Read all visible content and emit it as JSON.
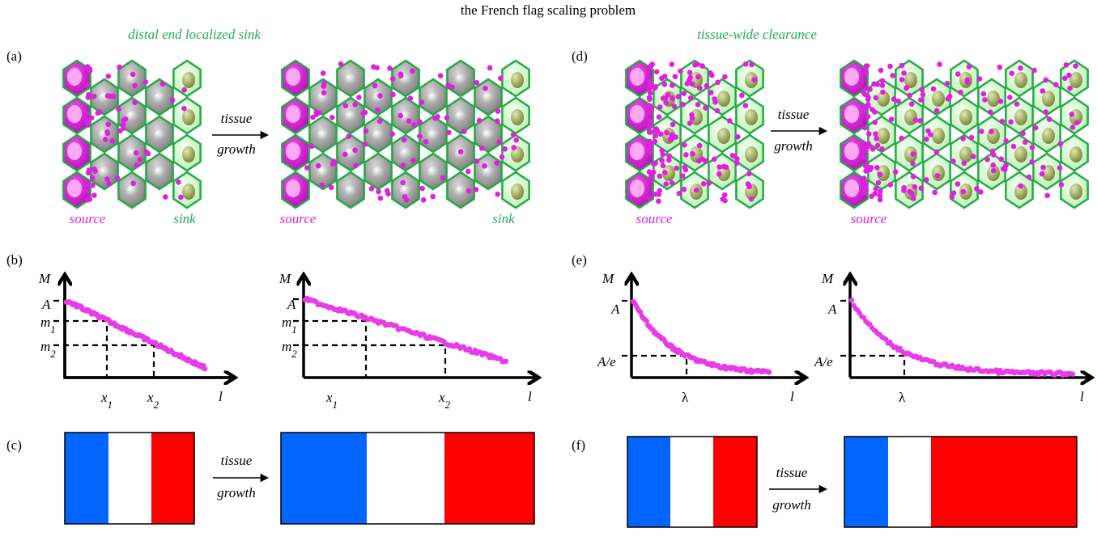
{
  "title": "the French flag scaling problem",
  "panel_a": {
    "label": "(a)",
    "heading": "distal end localized sink",
    "arrow": {
      "line1": "tissue",
      "line2": "growth"
    },
    "before": {
      "source": "source",
      "sink": "sink"
    },
    "after": {
      "source": "source",
      "sink": "sink"
    }
  },
  "panel_b": {
    "label": "(b)",
    "before": {
      "y_axis": "M",
      "x_axis": "l",
      "A": "A",
      "m1": {
        "base": "m",
        "sub": "1"
      },
      "m2": {
        "base": "m",
        "sub": "2"
      },
      "x1": {
        "base": "x",
        "sub": "1"
      },
      "x2": {
        "base": "x",
        "sub": "2"
      }
    },
    "after": {
      "y_axis": "M",
      "x_axis": "l",
      "A": "A",
      "m1": {
        "base": "m",
        "sub": "1"
      },
      "m2": {
        "base": "m",
        "sub": "2"
      },
      "x1": {
        "base": "x",
        "sub": "1"
      },
      "x2": {
        "base": "x",
        "sub": "2"
      }
    }
  },
  "panel_c": {
    "label": "(c)",
    "arrow": {
      "line1": "tissue",
      "line2": "growth"
    }
  },
  "panel_d": {
    "label": "(d)",
    "heading": "tissue-wide clearance",
    "arrow": {
      "line1": "tissue",
      "line2": "growth"
    },
    "before": {
      "source": "source"
    },
    "after": {
      "source": "source"
    }
  },
  "panel_e": {
    "label": "(e)",
    "before": {
      "y_axis": "M",
      "x_axis": "l",
      "A": "A",
      "A_over_e": "A/e",
      "lambda": "λ"
    },
    "after": {
      "y_axis": "M",
      "x_axis": "l",
      "A": "A",
      "A_over_e": "A/e",
      "lambda": "λ"
    }
  },
  "panel_f": {
    "label": "(f)",
    "arrow": {
      "line1": "tissue",
      "line2": "growth"
    }
  }
}
